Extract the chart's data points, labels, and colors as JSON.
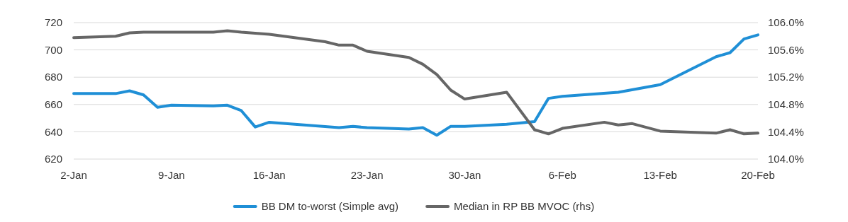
{
  "chart_data": {
    "type": "line",
    "xlim": [
      "--01-02",
      "--02-20"
    ],
    "xticks": [
      {
        "value": "--01-02",
        "label": "2-Jan"
      },
      {
        "value": "--01-09",
        "label": "9-Jan"
      },
      {
        "value": "--01-16",
        "label": "16-Jan"
      },
      {
        "value": "--01-23",
        "label": "23-Jan"
      },
      {
        "value": "--01-30",
        "label": "30-Jan"
      },
      {
        "value": "--02-06",
        "label": "6-Feb"
      },
      {
        "value": "--02-13",
        "label": "13-Feb"
      },
      {
        "value": "--02-20",
        "label": "20-Feb"
      }
    ],
    "ylim": [
      620,
      720
    ],
    "yticks": [
      620,
      640,
      660,
      680,
      700,
      720
    ],
    "y2lim": [
      104,
      106
    ],
    "y2ticks": [
      {
        "value": 104,
        "label": "104.0%"
      },
      {
        "value": 104.4,
        "label": "104.4%"
      },
      {
        "value": 104.8,
        "label": "104.8%"
      },
      {
        "value": 105.2,
        "label": "105.2%"
      },
      {
        "value": 105.6,
        "label": "105.6%"
      },
      {
        "value": 106,
        "label": "106.0%"
      }
    ],
    "grid": "y",
    "legend": "bottom",
    "marker": "none",
    "line_style": "solid",
    "series": [
      {
        "name": "BB DM to-worst (Simple avg)",
        "color": "#1f8fd6",
        "x": [
          "--01-02",
          "--01-05",
          "--01-06",
          "--01-07",
          "--01-08",
          "--01-09",
          "--01-12",
          "--01-13",
          "--01-14",
          "--01-15",
          "--01-16",
          "--01-21",
          "--01-22",
          "--01-23",
          "--01-26",
          "--01-27",
          "--01-28",
          "--01-29",
          "--01-30",
          "--02-02",
          "--02-04",
          "--02-05",
          "--02-06",
          "--02-10",
          "--02-13",
          "--02-17",
          "--02-18",
          "--02-19",
          "--02-20"
        ],
        "values": [
          668,
          668,
          670,
          667,
          658,
          659.5,
          659,
          659.5,
          655.5,
          643.5,
          647,
          643,
          644,
          643,
          642,
          643,
          637.5,
          644,
          644,
          645.5,
          647.5,
          664.5,
          666,
          669,
          674.5,
          695,
          698,
          708,
          711
        ]
      },
      {
        "name": "Median in RP BB MVOC (rhs)",
        "color": "#666666",
        "axis": "y2",
        "x": [
          "--01-02",
          "--01-05",
          "--01-06",
          "--01-07",
          "--01-12",
          "--01-13",
          "--01-14",
          "--01-16",
          "--01-20",
          "--01-21",
          "--01-22",
          "--01-23",
          "--01-26",
          "--01-27",
          "--01-28",
          "--01-29",
          "--01-30",
          "--02-02",
          "--02-04",
          "--02-05",
          "--02-06",
          "--02-09",
          "--02-10",
          "--02-11",
          "--02-13",
          "--02-17",
          "--02-18",
          "--02-19",
          "--02-20"
        ],
        "values": [
          105.78,
          105.8,
          105.85,
          105.86,
          105.86,
          105.88,
          105.86,
          105.83,
          105.72,
          105.67,
          105.67,
          105.58,
          105.49,
          105.39,
          105.24,
          105.01,
          104.88,
          104.98,
          104.43,
          104.37,
          104.45,
          104.54,
          104.5,
          104.52,
          104.41,
          104.38,
          104.43,
          104.37,
          104.38
        ]
      }
    ]
  }
}
